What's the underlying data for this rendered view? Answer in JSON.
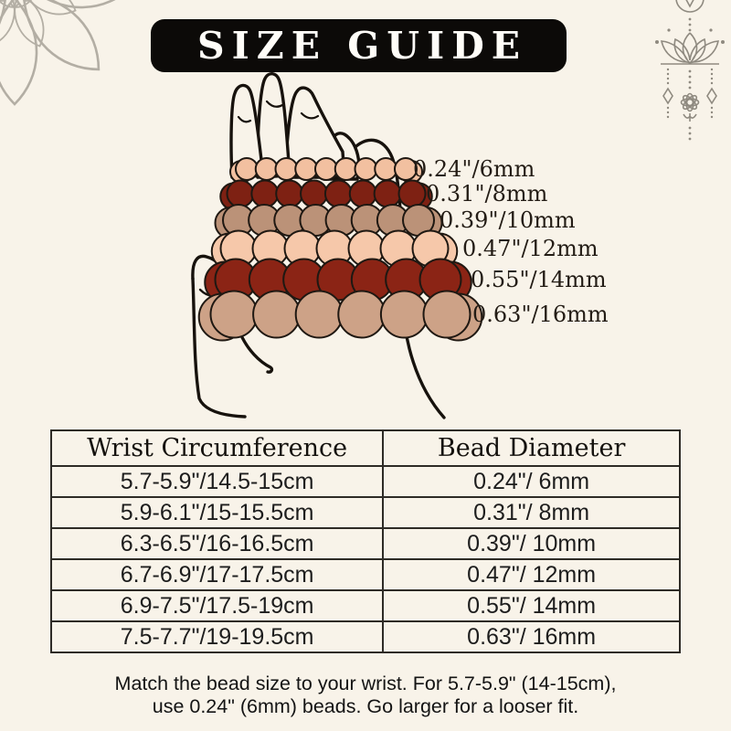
{
  "page": {
    "background": "#f8f3e9"
  },
  "banner": {
    "title": "SIZE GUIDE",
    "bg_color": "#0c0a08",
    "text_color": "#fffdf8"
  },
  "decorations": {
    "top_left": "mandala-flower-outline",
    "top_right": "lotus-pendant-ornament",
    "line_color_left": "#b3aea4",
    "line_color_right": "#8f8a80"
  },
  "bracelets": {
    "rows": [
      {
        "label": "0.24\"/6mm",
        "mm": 6,
        "color": "#f2c0a0"
      },
      {
        "label": "0.31\"/8mm",
        "mm": 8,
        "color": "#7e2113"
      },
      {
        "label": "0.39\"/10mm",
        "mm": 10,
        "color": "#bb9278"
      },
      {
        "label": "0.47\"/12mm",
        "mm": 12,
        "color": "#f6c8aa"
      },
      {
        "label": "0.55\"/14mm",
        "mm": 14,
        "color": "#8b2415"
      },
      {
        "label": "0.63\"/16mm",
        "mm": 16,
        "color": "#cda287"
      }
    ],
    "outline_color": "#1f1812"
  },
  "table": {
    "headers": [
      "Wrist Circumference",
      "Bead Diameter"
    ],
    "rows": [
      [
        "5.7-5.9\"/14.5-15cm",
        "0.24\"/ 6mm"
      ],
      [
        "5.9-6.1\"/15-15.5cm",
        "0.31\"/ 8mm"
      ],
      [
        "6.3-6.5\"/16-16.5cm",
        "0.39\"/ 10mm"
      ],
      [
        "6.7-6.9\"/17-17.5cm",
        "0.47\"/ 12mm"
      ],
      [
        "6.9-7.5\"/17.5-19cm",
        "0.55\"/ 14mm"
      ],
      [
        "7.5-7.7\"/19-19.5cm",
        "0.63\"/ 16mm"
      ]
    ]
  },
  "footer": {
    "line1": "Match the bead size to your wrist. For 5.7-5.9\" (14-15cm),",
    "line2": "use 0.24\" (6mm) beads. Go larger for a looser fit."
  }
}
